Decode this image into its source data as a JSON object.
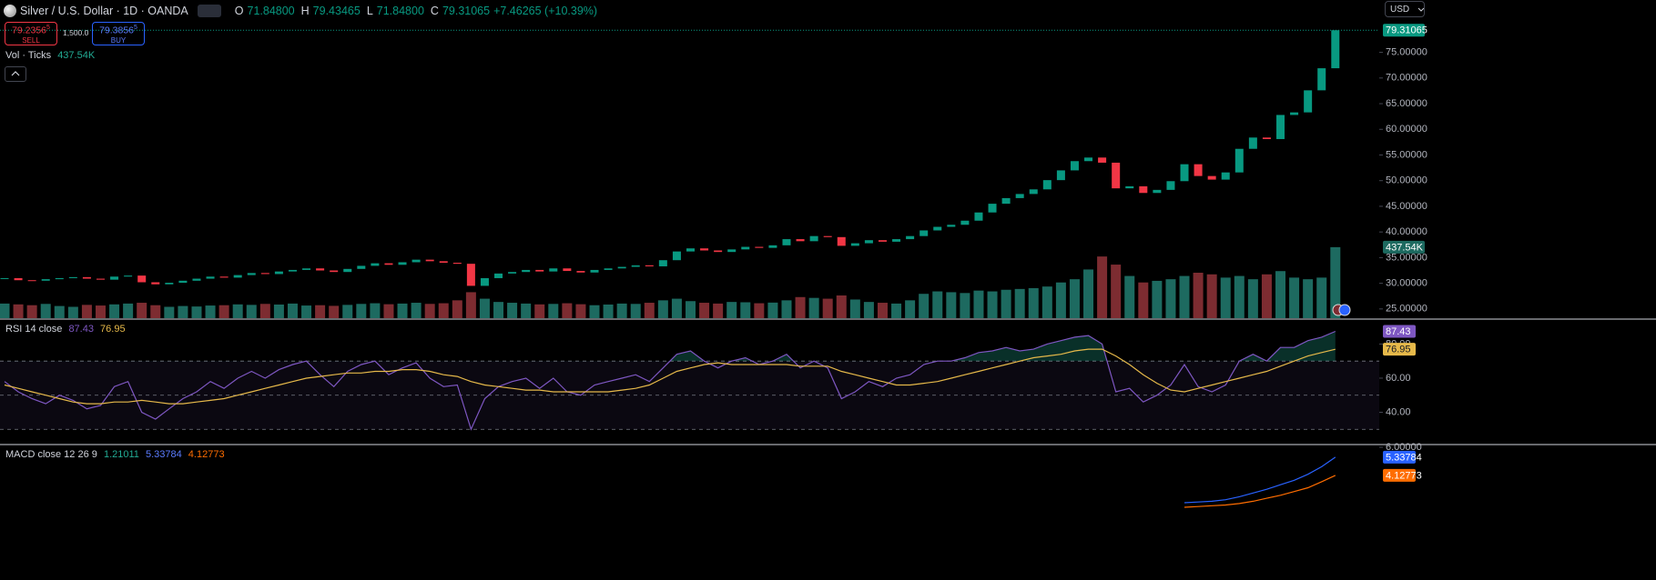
{
  "header": {
    "symbol": "Silver / U.S. Dollar · 1D · OANDA",
    "ohlc": [
      {
        "key": "O",
        "value": "71.84800"
      },
      {
        "key": "H",
        "value": "79.43465"
      },
      {
        "key": "L",
        "value": "71.84800"
      },
      {
        "key": "C",
        "value": "79.31065"
      }
    ],
    "change": "+7.46265 (+10.39%)",
    "currency": "USD"
  },
  "trade": {
    "sell_price": "79.2356",
    "sell_sup": "5",
    "sell_label": "SELL",
    "quantity": "1,500.0",
    "buy_price": "79.3856",
    "buy_sup": "5",
    "buy_label": "BUY"
  },
  "chart_data": [
    {
      "type": "candlestick",
      "series": [
        {
          "up_color": "#089981",
          "down_color": "#f23645",
          "values": [
            31.0,
            30.6,
            30.5,
            30.8,
            31.0,
            31.2,
            30.9,
            30.7,
            31.3,
            31.5,
            30.2,
            29.8,
            30.1,
            30.5,
            30.9,
            31.3,
            31.1,
            31.6,
            32.0,
            31.8,
            32.3,
            32.6,
            32.9,
            32.5,
            32.2,
            32.8,
            33.4,
            33.9,
            33.6,
            34.1,
            34.6,
            34.3,
            34.0,
            33.8,
            29.5,
            31.0,
            31.9,
            32.2,
            32.6,
            32.3,
            32.9,
            32.4,
            32.1,
            32.6,
            32.9,
            33.2,
            33.5,
            33.3,
            34.5,
            36.2,
            36.8,
            36.4,
            36.1,
            36.6,
            37.1,
            36.9,
            37.4,
            38.6,
            38.2,
            39.2,
            39.0,
            37.3,
            37.8,
            38.4,
            38.1,
            38.6,
            39.2,
            40.3,
            41.0,
            41.4,
            42.2,
            43.8,
            45.5,
            46.6,
            47.4,
            48.3,
            50.1,
            52.0,
            53.8,
            54.5,
            53.5,
            48.5,
            48.9,
            47.6,
            48.2,
            49.9,
            53.2,
            50.9,
            50.2,
            51.6,
            56.2,
            58.4,
            58.1,
            62.8,
            63.3,
            67.6,
            71.9,
            79.31065
          ]
        },
        {
          "name": "Vol · Ticks",
          "axis": "y2",
          "readout": "437.54K",
          "up_color": "#1d6a60",
          "down_color": "#7d2c31",
          "values": [
            90,
            85,
            80,
            88,
            75,
            70,
            82,
            78,
            85,
            90,
            95,
            80,
            70,
            75,
            72,
            78,
            80,
            85,
            82,
            88,
            84,
            90,
            78,
            80,
            76,
            82,
            88,
            92,
            86,
            90,
            95,
            88,
            92,
            110,
            160,
            120,
            100,
            95,
            90,
            85,
            88,
            92,
            86,
            80,
            84,
            90,
            88,
            95,
            110,
            120,
            105,
            95,
            90,
            100,
            98,
            92,
            96,
            110,
            130,
            125,
            120,
            140,
            115,
            100,
            95,
            90,
            110,
            150,
            165,
            160,
            155,
            170,
            165,
            175,
            180,
            185,
            195,
            220,
            240,
            300,
            380,
            330,
            260,
            220,
            230,
            240,
            260,
            280,
            270,
            250,
            260,
            240,
            270,
            290,
            250,
            240,
            250,
            437.54
          ]
        }
      ],
      "ylim": [
        23.2,
        85.2
      ],
      "yticks": [
        {
          "value": 25,
          "label": "25.00000"
        },
        {
          "value": 30,
          "label": "30.00000"
        },
        {
          "value": 35,
          "label": "35.00000"
        },
        {
          "value": 40,
          "label": "40.00000"
        },
        {
          "value": 45,
          "label": "45.00000"
        },
        {
          "value": 50,
          "label": "50.00000"
        },
        {
          "value": 55,
          "label": "55.00000"
        },
        {
          "value": 60,
          "label": "60.00000"
        },
        {
          "value": 65,
          "label": "65.00000"
        },
        {
          "value": 70,
          "label": "70.00000"
        },
        {
          "value": 75,
          "label": "75.00000"
        }
      ],
      "y2lim": [
        0,
        1960
      ]
    },
    {
      "type": "line",
      "title": "RSI 14 close",
      "series": [
        {
          "color": "#7e57c2",
          "values": [
            58,
            52,
            48,
            45,
            50,
            47,
            42,
            44,
            55,
            58,
            40,
            36,
            42,
            48,
            52,
            58,
            54,
            60,
            64,
            60,
            65,
            68,
            70,
            62,
            55,
            64,
            68,
            70,
            62,
            66,
            69,
            60,
            55,
            56,
            30,
            48,
            55,
            58,
            60,
            54,
            60,
            52,
            50,
            56,
            58,
            60,
            62,
            58,
            66,
            74,
            76,
            70,
            66,
            70,
            72,
            68,
            70,
            74,
            66,
            70,
            66,
            48,
            52,
            58,
            55,
            60,
            62,
            68,
            70,
            70,
            72,
            75,
            76,
            78,
            76,
            77,
            80,
            82,
            84,
            85,
            80,
            52,
            54,
            46,
            50,
            56,
            68,
            55,
            52,
            56,
            70,
            74,
            70,
            78,
            78,
            82,
            84,
            87.43
          ]
        },
        {
          "color": "#e6b94a",
          "values": [
            56,
            54,
            52,
            50,
            48,
            46,
            45,
            45,
            46,
            46,
            47,
            46,
            45,
            45,
            46,
            47,
            48,
            50,
            52,
            54,
            56,
            58,
            60,
            61,
            62,
            63,
            63,
            64,
            64,
            65,
            65,
            64,
            62,
            61,
            58,
            56,
            55,
            54,
            53,
            53,
            52,
            52,
            52,
            52,
            52,
            53,
            54,
            56,
            60,
            64,
            66,
            68,
            69,
            68,
            68,
            68,
            68,
            68,
            67,
            67,
            67,
            64,
            62,
            60,
            58,
            56,
            56,
            57,
            58,
            60,
            62,
            64,
            66,
            68,
            70,
            72,
            73,
            74,
            76,
            77,
            77,
            73,
            68,
            62,
            57,
            53,
            52,
            54,
            56,
            58,
            60,
            62,
            64,
            67,
            70,
            73,
            75,
            76.95
          ]
        }
      ],
      "ylim": [
        21.6,
        94.1
      ],
      "yticks": [
        {
          "value": 40,
          "label": "40.00"
        },
        {
          "value": 60,
          "label": "60.00"
        },
        {
          "value": 80,
          "label": "80.00"
        }
      ],
      "levels": [
        30,
        50,
        70
      ]
    },
    {
      "type": "line",
      "title": "MACD close 12 26 9",
      "histogram": 1.21011,
      "histogram_color": "#22ab94",
      "series": [
        {
          "color": "#2962ff",
          "values": [
            null,
            null,
            null,
            null,
            null,
            null,
            null,
            null,
            null,
            null,
            null,
            null,
            null,
            null,
            null,
            null,
            null,
            null,
            null,
            null,
            null,
            null,
            null,
            null,
            null,
            null,
            null,
            null,
            null,
            null,
            null,
            null,
            null,
            null,
            null,
            null,
            null,
            null,
            null,
            null,
            null,
            null,
            null,
            null,
            null,
            null,
            null,
            null,
            null,
            null,
            null,
            null,
            null,
            null,
            null,
            null,
            null,
            null,
            null,
            null,
            null,
            null,
            null,
            null,
            null,
            null,
            null,
            null,
            null,
            null,
            null,
            null,
            null,
            null,
            null,
            null,
            null,
            null,
            null,
            null,
            null,
            null,
            null,
            null,
            null,
            null,
            2.3,
            2.35,
            2.4,
            2.5,
            2.7,
            2.95,
            3.2,
            3.5,
            3.8,
            4.2,
            4.7,
            5.33784
          ]
        },
        {
          "color": "#ff6d00",
          "values": [
            null,
            null,
            null,
            null,
            null,
            null,
            null,
            null,
            null,
            null,
            null,
            null,
            null,
            null,
            null,
            null,
            null,
            null,
            null,
            null,
            null,
            null,
            null,
            null,
            null,
            null,
            null,
            null,
            null,
            null,
            null,
            null,
            null,
            null,
            null,
            null,
            null,
            null,
            null,
            null,
            null,
            null,
            null,
            null,
            null,
            null,
            null,
            null,
            null,
            null,
            null,
            null,
            null,
            null,
            null,
            null,
            null,
            null,
            null,
            null,
            null,
            null,
            null,
            null,
            null,
            null,
            null,
            null,
            null,
            null,
            null,
            null,
            null,
            null,
            null,
            null,
            null,
            null,
            null,
            null,
            null,
            null,
            null,
            null,
            null,
            null,
            2.0,
            2.05,
            2.1,
            2.15,
            2.25,
            2.4,
            2.6,
            2.8,
            3.05,
            3.3,
            3.7,
            4.12773
          ]
        }
      ],
      "ylim": [
        -2.85,
        6.12
      ],
      "yticks": [
        {
          "value": 6,
          "label": "6.00000"
        }
      ]
    }
  ]
}
